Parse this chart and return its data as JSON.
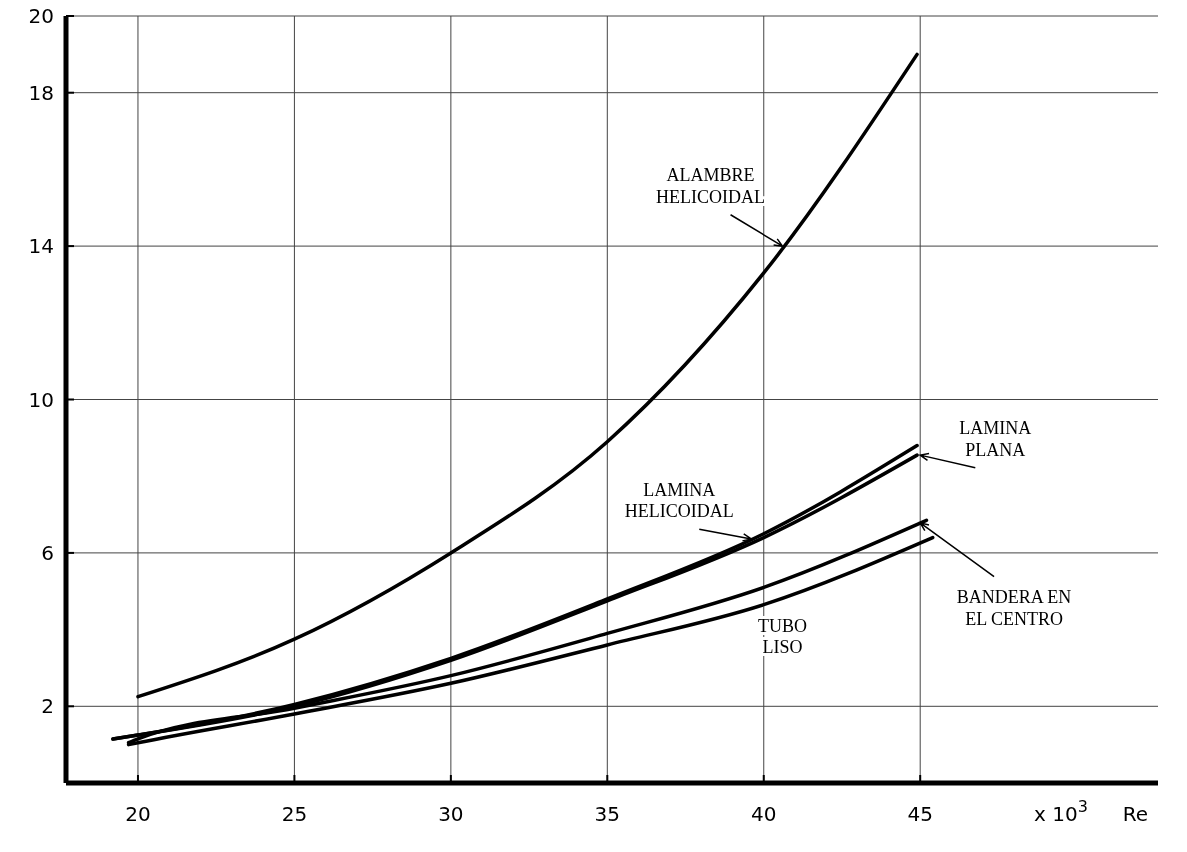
{
  "chart_data": {
    "type": "line",
    "xlabel": "Re",
    "annotations": [
      "x 10$^{3}$"
    ],
    "xlim": [
      17.7,
      52.6
    ],
    "ylim": [
      0,
      20
    ],
    "xticks": [
      20,
      25,
      30,
      35,
      40,
      45
    ],
    "yticks": [
      2,
      6,
      10,
      14,
      18,
      20
    ],
    "grid": true,
    "marker": "none",
    "line_style": "solid",
    "series": [
      {
        "name": "ALAMBRE HELICOIDAL",
        "color": "#000000",
        "x": [
          20,
          25,
          30,
          35,
          40,
          44.9
        ],
        "values": [
          2.25,
          3.75,
          6.0,
          8.9,
          13.3,
          19
        ]
      },
      {
        "name": "LAMINA HELICOIDAL",
        "color": "#000000",
        "x": [
          19.2,
          20,
          25,
          30,
          35,
          40,
          44.9
        ],
        "values": [
          1.15,
          1.25,
          2.05,
          3.25,
          4.8,
          6.5,
          8.8
        ]
      },
      {
        "name": "LAMINA PLANA",
        "color": "#000000",
        "x": [
          19.2,
          20,
          25,
          30,
          35,
          40,
          44.9
        ],
        "values": [
          1.15,
          1.25,
          2.0,
          3.2,
          4.75,
          6.4,
          8.55
        ]
      },
      {
        "name": "BANDERA EN EL CENTRO",
        "color": "#000000",
        "x": [
          19.7,
          20,
          25,
          30,
          35,
          40,
          45.2
        ],
        "values": [
          1.05,
          1.15,
          1.95,
          2.8,
          3.9,
          5.1,
          6.85
        ]
      },
      {
        "name": "TUBO LISO",
        "color": "#000000",
        "x": [
          19.7,
          20,
          25,
          30,
          35,
          40,
          45.4
        ],
        "values": [
          1.0,
          1.05,
          1.8,
          2.6,
          3.6,
          4.65,
          6.4
        ]
      }
    ]
  }
}
